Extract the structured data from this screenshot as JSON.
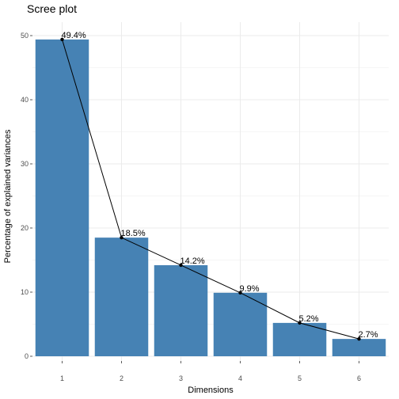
{
  "chart_data": {
    "type": "bar",
    "title": "Scree plot",
    "xlabel": "Dimensions",
    "ylabel": "Percentage of explained variances",
    "categories": [
      "1",
      "2",
      "3",
      "4",
      "5",
      "6"
    ],
    "values": [
      49.4,
      18.5,
      14.2,
      9.9,
      5.2,
      2.7
    ],
    "data_labels": [
      "49.4%",
      "18.5%",
      "14.2%",
      "9.9%",
      "5.2%",
      "2.7%"
    ],
    "yticks": [
      0,
      10,
      20,
      30,
      40,
      50
    ],
    "ylim": [
      0,
      51.9
    ],
    "overlay": "line with points",
    "grid": true,
    "colors": {
      "bar": "#4682b4",
      "line": "#000000",
      "grid": "#ebebeb"
    }
  }
}
